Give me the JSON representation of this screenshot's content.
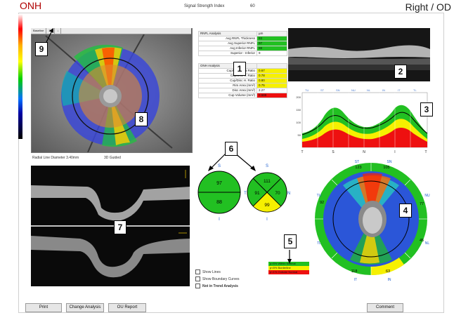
{
  "header": {
    "module_title": "ONH",
    "eye_label": "Right / OD",
    "signal_strength_label": "Signal Strength Index",
    "signal_strength_value": "60"
  },
  "fundus": {
    "tabs": [
      "Baseline",
      "3D",
      "↓"
    ],
    "caption_left": "Radial Line Diameter 3.40mm",
    "caption_right": "3D Guided"
  },
  "rnfl_table": {
    "title": "RNFL Analysis",
    "unit": "µm",
    "rows": [
      {
        "label": "Avg RNFL Thickness",
        "value": "93",
        "status": "green"
      },
      {
        "label": "Avg Superior RNFL",
        "value": "97",
        "status": "green"
      },
      {
        "label": "Avg Inferior RNFL",
        "value": "88",
        "status": "green"
      },
      {
        "label": "Superior - Inferior",
        "value": "9",
        "status": "none"
      }
    ]
  },
  "onh_table": {
    "title": "ONH Analysis",
    "rows": [
      {
        "label": "Cup/Disc Area Ratio",
        "value": "0.67",
        "status": "yellow"
      },
      {
        "label": "Cup/Disc V. Ratio",
        "value": "0.78",
        "status": "yellow"
      },
      {
        "label": "Cup/Disc H. Ratio",
        "value": "0.80",
        "status": "yellow"
      },
      {
        "label": "Rim Area (mm²)",
        "value": "0.75",
        "status": "yellow"
      },
      {
        "label": "Disc Area (mm²)",
        "value": "2.27",
        "status": "none"
      },
      {
        "label": "Cup Volume (mm³)",
        "value": "0.688",
        "status": "red"
      }
    ]
  },
  "tsnit_chart": {
    "top_sectors": [
      "TU",
      "ST",
      "SN",
      "NU",
      "NL",
      "IN",
      "IT",
      "TL"
    ],
    "x_ticks": [
      "T",
      "S",
      "N",
      "I",
      "T"
    ],
    "y_ticks": [
      "200",
      "150",
      "100",
      "50"
    ]
  },
  "hemispheres": {
    "left": {
      "top_label": "S",
      "bottom_label": "I",
      "superior": "97",
      "inferior": "88"
    },
    "right": {
      "top_label": "S",
      "bottom_label": "I",
      "left_label": "T",
      "right_label": "N",
      "superior": "111",
      "temporal": "91",
      "nasal": "70",
      "inferior": "99"
    }
  },
  "sector_map": {
    "labels": [
      "ST",
      "SN",
      "NU",
      "NL",
      "IN",
      "IT",
      "TL",
      "TU"
    ],
    "values": [
      "123",
      "105",
      "77",
      "45",
      "63",
      "118",
      "",
      "92"
    ]
  },
  "legend": {
    "items": [
      {
        "text": "p>5% Within Normal",
        "color": "#22c022"
      },
      {
        "text": "p<5% Borderline",
        "color": "#f6f000"
      },
      {
        "text": "p<1% Outside Normal",
        "color": "#ee1010"
      }
    ]
  },
  "checkboxes": {
    "show_lines": "Show Lines",
    "show_boundary": "Show Boundary Curves",
    "not_in_trend": "Not in Trend Analysis"
  },
  "buttons": {
    "print": "Print",
    "change_analysis": "Change Analysis",
    "ou_report": "OU Report",
    "comment": "Comment"
  },
  "markers": [
    "1",
    "2",
    "3",
    "4",
    "5",
    "6",
    "7",
    "8",
    "9"
  ]
}
